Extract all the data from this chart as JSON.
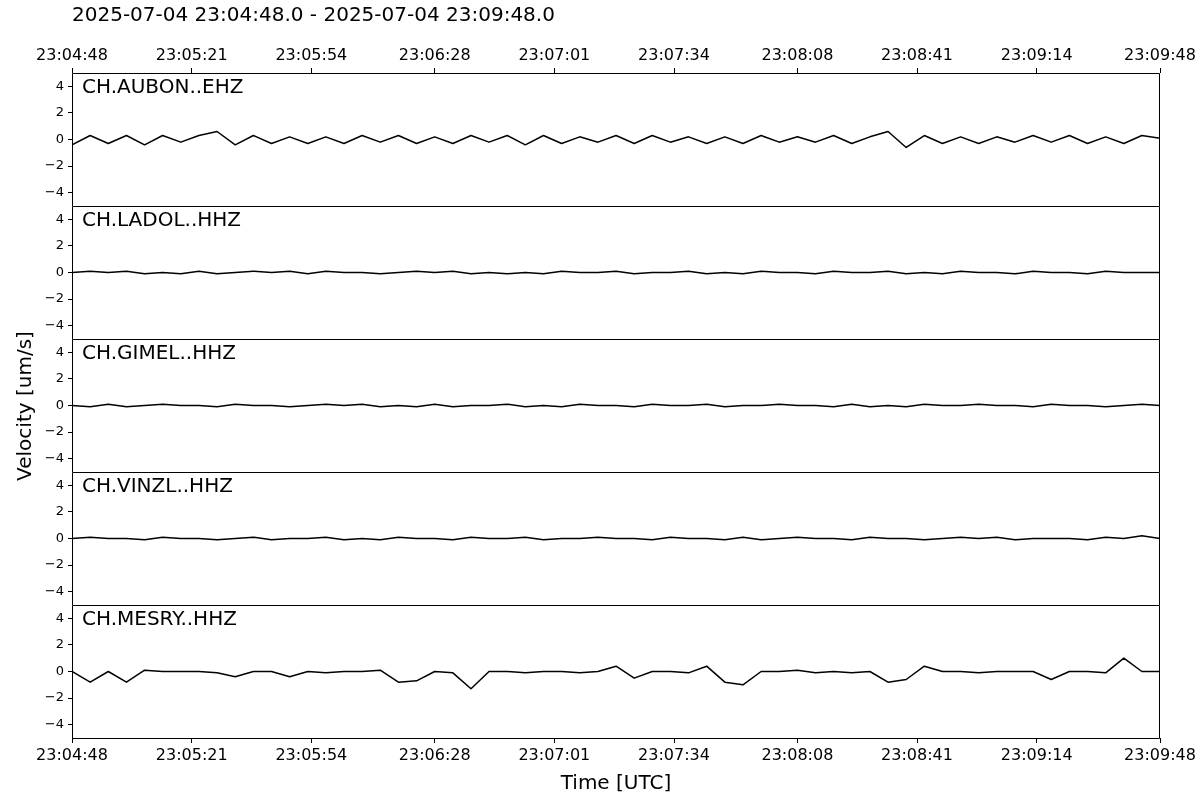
{
  "chart_data": [
    {
      "type": "line",
      "title": "2025-07-04 23:04:48.0 - 2025-07-04 23:09:48.0",
      "tick_labels": "y",
      "x": [
        23.08,
        23.08139,
        23.08278,
        23.08417,
        23.08556,
        23.08694,
        23.08833,
        23.08972,
        23.09111,
        23.0925,
        23.09389,
        23.09528,
        23.09667,
        23.09806,
        23.09944,
        23.10083,
        23.10222,
        23.10361,
        23.105,
        23.10639,
        23.10778,
        23.10917,
        23.11056,
        23.11194,
        23.11333,
        23.11472,
        23.11611,
        23.1175,
        23.11889,
        23.12028,
        23.12167,
        23.12306,
        23.12444,
        23.12583,
        23.12722,
        23.12861,
        23.13,
        23.13139,
        23.13278,
        23.13417,
        23.13556,
        23.13694,
        23.13833,
        23.13972,
        23.14111,
        23.1425,
        23.14389,
        23.14528,
        23.14667,
        23.14806,
        23.14944,
        23.15083,
        23.15222,
        23.15361,
        23.155,
        23.15639,
        23.15778,
        23.15917,
        23.16056,
        23.16194,
        23.16333
      ],
      "xlim": [
        23.08,
        23.16333
      ],
      "x2lim": [
        23.08,
        23.16333
      ],
      "x2ticks": [
        {
          "value": 23.08,
          "label": "23:04:48"
        },
        {
          "value": 23.08917,
          "label": "23:05:21"
        },
        {
          "value": 23.09833,
          "label": "23:05:54"
        },
        {
          "value": 23.10778,
          "label": "23:06:28"
        },
        {
          "value": 23.11694,
          "label": "23:07:01"
        },
        {
          "value": 23.12611,
          "label": "23:07:34"
        },
        {
          "value": 23.13556,
          "label": "23:08:08"
        },
        {
          "value": 23.14472,
          "label": "23:08:41"
        },
        {
          "value": 23.15389,
          "label": "23:09:14"
        },
        {
          "value": 23.16333,
          "label": "23:09:48"
        }
      ],
      "ylim": [
        -5,
        5
      ],
      "yticks": [
        -4,
        -2,
        0,
        2,
        4
      ],
      "series": [
        {
          "name": "CH.AUBON..EHZ",
          "color": "#000000",
          "values": [
            -0.4,
            0.3,
            -0.3,
            0.3,
            -0.4,
            0.3,
            -0.2,
            0.3,
            0.6,
            -0.4,
            0.3,
            -0.3,
            0.2,
            -0.3,
            0.2,
            -0.3,
            0.3,
            -0.2,
            0.3,
            -0.3,
            0.2,
            -0.3,
            0.3,
            -0.2,
            0.3,
            -0.4,
            0.3,
            -0.3,
            0.2,
            -0.2,
            0.3,
            -0.3,
            0.3,
            -0.2,
            0.2,
            -0.3,
            0.2,
            -0.3,
            0.3,
            -0.2,
            0.2,
            -0.2,
            0.3,
            -0.3,
            0.2,
            0.6,
            -0.6,
            0.3,
            -0.3,
            0.2,
            -0.3,
            0.2,
            -0.2,
            0.3,
            -0.2,
            0.3,
            -0.3,
            0.2,
            -0.3,
            0.3,
            0.1
          ]
        }
      ]
    },
    {
      "type": "line",
      "tick_labels": "y",
      "x": [
        23.08,
        23.08139,
        23.08278,
        23.08417,
        23.08556,
        23.08694,
        23.08833,
        23.08972,
        23.09111,
        23.0925,
        23.09389,
        23.09528,
        23.09667,
        23.09806,
        23.09944,
        23.10083,
        23.10222,
        23.10361,
        23.105,
        23.10639,
        23.10778,
        23.10917,
        23.11056,
        23.11194,
        23.11333,
        23.11472,
        23.11611,
        23.1175,
        23.11889,
        23.12028,
        23.12167,
        23.12306,
        23.12444,
        23.12583,
        23.12722,
        23.12861,
        23.13,
        23.13139,
        23.13278,
        23.13417,
        23.13556,
        23.13694,
        23.13833,
        23.13972,
        23.14111,
        23.1425,
        23.14389,
        23.14528,
        23.14667,
        23.14806,
        23.14944,
        23.15083,
        23.15222,
        23.15361,
        23.155,
        23.15639,
        23.15778,
        23.15917,
        23.16056,
        23.16194,
        23.16333
      ],
      "xlim": [
        23.08,
        23.16333
      ],
      "ylim": [
        -5,
        5
      ],
      "yticks": [
        -4,
        -2,
        0,
        2,
        4
      ],
      "series": [
        {
          "name": "CH.LADOL..HHZ",
          "color": "#000000",
          "values": [
            0,
            0.1,
            0,
            0.1,
            -0.1,
            0,
            -0.1,
            0.1,
            -0.1,
            0,
            0.1,
            0,
            0.1,
            -0.1,
            0.1,
            0,
            0,
            -0.1,
            0,
            0.1,
            0,
            0.1,
            -0.1,
            0,
            -0.1,
            0,
            -0.1,
            0.1,
            0,
            0,
            0.1,
            -0.1,
            0,
            0,
            0.1,
            -0.1,
            0,
            -0.1,
            0.1,
            0,
            0,
            -0.1,
            0.1,
            0,
            0,
            0.1,
            -0.1,
            0,
            -0.1,
            0.1,
            0,
            0,
            -0.1,
            0.1,
            0,
            0,
            -0.1,
            0.1,
            0,
            0,
            0
          ]
        }
      ]
    },
    {
      "type": "line",
      "tick_labels": "y",
      "ylabel": "Velocity [um/s]",
      "x": [
        23.08,
        23.08139,
        23.08278,
        23.08417,
        23.08556,
        23.08694,
        23.08833,
        23.08972,
        23.09111,
        23.0925,
        23.09389,
        23.09528,
        23.09667,
        23.09806,
        23.09944,
        23.10083,
        23.10222,
        23.10361,
        23.105,
        23.10639,
        23.10778,
        23.10917,
        23.11056,
        23.11194,
        23.11333,
        23.11472,
        23.11611,
        23.1175,
        23.11889,
        23.12028,
        23.12167,
        23.12306,
        23.12444,
        23.12583,
        23.12722,
        23.12861,
        23.13,
        23.13139,
        23.13278,
        23.13417,
        23.13556,
        23.13694,
        23.13833,
        23.13972,
        23.14111,
        23.1425,
        23.14389,
        23.14528,
        23.14667,
        23.14806,
        23.14944,
        23.15083,
        23.15222,
        23.15361,
        23.155,
        23.15639,
        23.15778,
        23.15917,
        23.16056,
        23.16194,
        23.16333
      ],
      "xlim": [
        23.08,
        23.16333
      ],
      "ylim": [
        -5,
        5
      ],
      "yticks": [
        -4,
        -2,
        0,
        2,
        4
      ],
      "series": [
        {
          "name": "CH.GIMEL..HHZ",
          "color": "#000000",
          "values": [
            0,
            -0.1,
            0.1,
            -0.1,
            0,
            0.1,
            0,
            0,
            -0.1,
            0.1,
            0,
            0,
            -0.1,
            0,
            0.1,
            0,
            0.1,
            -0.1,
            0,
            -0.1,
            0.1,
            -0.1,
            0,
            0,
            0.1,
            -0.1,
            0,
            -0.1,
            0.1,
            0,
            0,
            -0.1,
            0.1,
            0,
            0,
            0.1,
            -0.1,
            0,
            0,
            0.1,
            0,
            0,
            -0.1,
            0.1,
            -0.1,
            0,
            -0.1,
            0.1,
            0,
            0,
            0.1,
            0,
            0,
            -0.1,
            0.1,
            0,
            0,
            -0.1,
            0,
            0.1,
            0
          ]
        }
      ]
    },
    {
      "type": "line",
      "tick_labels": "y",
      "x": [
        23.08,
        23.08139,
        23.08278,
        23.08417,
        23.08556,
        23.08694,
        23.08833,
        23.08972,
        23.09111,
        23.0925,
        23.09389,
        23.09528,
        23.09667,
        23.09806,
        23.09944,
        23.10083,
        23.10222,
        23.10361,
        23.105,
        23.10639,
        23.10778,
        23.10917,
        23.11056,
        23.11194,
        23.11333,
        23.11472,
        23.11611,
        23.1175,
        23.11889,
        23.12028,
        23.12167,
        23.12306,
        23.12444,
        23.12583,
        23.12722,
        23.12861,
        23.13,
        23.13139,
        23.13278,
        23.13417,
        23.13556,
        23.13694,
        23.13833,
        23.13972,
        23.14111,
        23.1425,
        23.14389,
        23.14528,
        23.14667,
        23.14806,
        23.14944,
        23.15083,
        23.15222,
        23.15361,
        23.155,
        23.15639,
        23.15778,
        23.15917,
        23.16056,
        23.16194,
        23.16333
      ],
      "xlim": [
        23.08,
        23.16333
      ],
      "ylim": [
        -5,
        5
      ],
      "yticks": [
        -4,
        -2,
        0,
        2,
        4
      ],
      "series": [
        {
          "name": "CH.VINZL..HHZ",
          "color": "#000000",
          "values": [
            0,
            0.1,
            0,
            0,
            -0.1,
            0.1,
            0,
            0,
            -0.1,
            0,
            0.1,
            -0.1,
            0,
            0,
            0.1,
            -0.1,
            0,
            -0.1,
            0.1,
            0,
            0,
            -0.1,
            0.1,
            0,
            0,
            0.1,
            -0.1,
            0,
            0,
            0.1,
            0,
            0,
            -0.1,
            0.1,
            0,
            0,
            -0.1,
            0.1,
            -0.1,
            0,
            0.1,
            0,
            0,
            -0.1,
            0.1,
            0,
            0,
            -0.1,
            0,
            0.1,
            0,
            0.1,
            -0.1,
            0,
            0,
            0,
            -0.1,
            0.1,
            0,
            0.2,
            0
          ]
        }
      ]
    },
    {
      "type": "line",
      "xlabel": "Time [UTC]",
      "x": [
        23.08,
        23.08139,
        23.08278,
        23.08417,
        23.08556,
        23.08694,
        23.08833,
        23.08972,
        23.09111,
        23.0925,
        23.09389,
        23.09528,
        23.09667,
        23.09806,
        23.09944,
        23.10083,
        23.10222,
        23.10361,
        23.105,
        23.10639,
        23.10778,
        23.10917,
        23.11056,
        23.11194,
        23.11333,
        23.11472,
        23.11611,
        23.1175,
        23.11889,
        23.12028,
        23.12167,
        23.12306,
        23.12444,
        23.12583,
        23.12722,
        23.12861,
        23.13,
        23.13139,
        23.13278,
        23.13417,
        23.13556,
        23.13694,
        23.13833,
        23.13972,
        23.14111,
        23.1425,
        23.14389,
        23.14528,
        23.14667,
        23.14806,
        23.14944,
        23.15083,
        23.15222,
        23.15361,
        23.155,
        23.15639,
        23.15778,
        23.15917,
        23.16056,
        23.16194,
        23.16333
      ],
      "xlim": [
        23.08,
        23.16333
      ],
      "xticks": [
        {
          "value": 23.08,
          "label": "23:04:48"
        },
        {
          "value": 23.08917,
          "label": "23:05:21"
        },
        {
          "value": 23.09833,
          "label": "23:05:54"
        },
        {
          "value": 23.10778,
          "label": "23:06:28"
        },
        {
          "value": 23.11694,
          "label": "23:07:01"
        },
        {
          "value": 23.12611,
          "label": "23:07:34"
        },
        {
          "value": 23.13556,
          "label": "23:08:08"
        },
        {
          "value": 23.14472,
          "label": "23:08:41"
        },
        {
          "value": 23.15389,
          "label": "23:09:14"
        },
        {
          "value": 23.16333,
          "label": "23:09:48"
        }
      ],
      "ylim": [
        -5,
        5
      ],
      "yticks": [
        -4,
        -2,
        0,
        2,
        4
      ],
      "series": [
        {
          "name": "CH.MESRY..HHZ",
          "color": "#000000",
          "values": [
            0,
            -0.8,
            0,
            -0.8,
            0.1,
            0,
            0,
            0,
            -0.1,
            -0.4,
            0,
            0,
            -0.4,
            0,
            -0.1,
            0,
            0,
            0.1,
            -0.8,
            -0.7,
            0,
            -0.1,
            -1.3,
            0,
            0,
            -0.1,
            0,
            0,
            -0.1,
            0,
            0.4,
            -0.5,
            0,
            0,
            -0.1,
            0.4,
            -0.8,
            -1.0,
            0,
            0,
            0.1,
            -0.1,
            0,
            -0.1,
            0,
            -0.8,
            -0.6,
            0.4,
            0,
            0,
            -0.1,
            0,
            0,
            0,
            -0.6,
            0,
            0,
            -0.1,
            1.0,
            0,
            0
          ]
        }
      ]
    }
  ]
}
